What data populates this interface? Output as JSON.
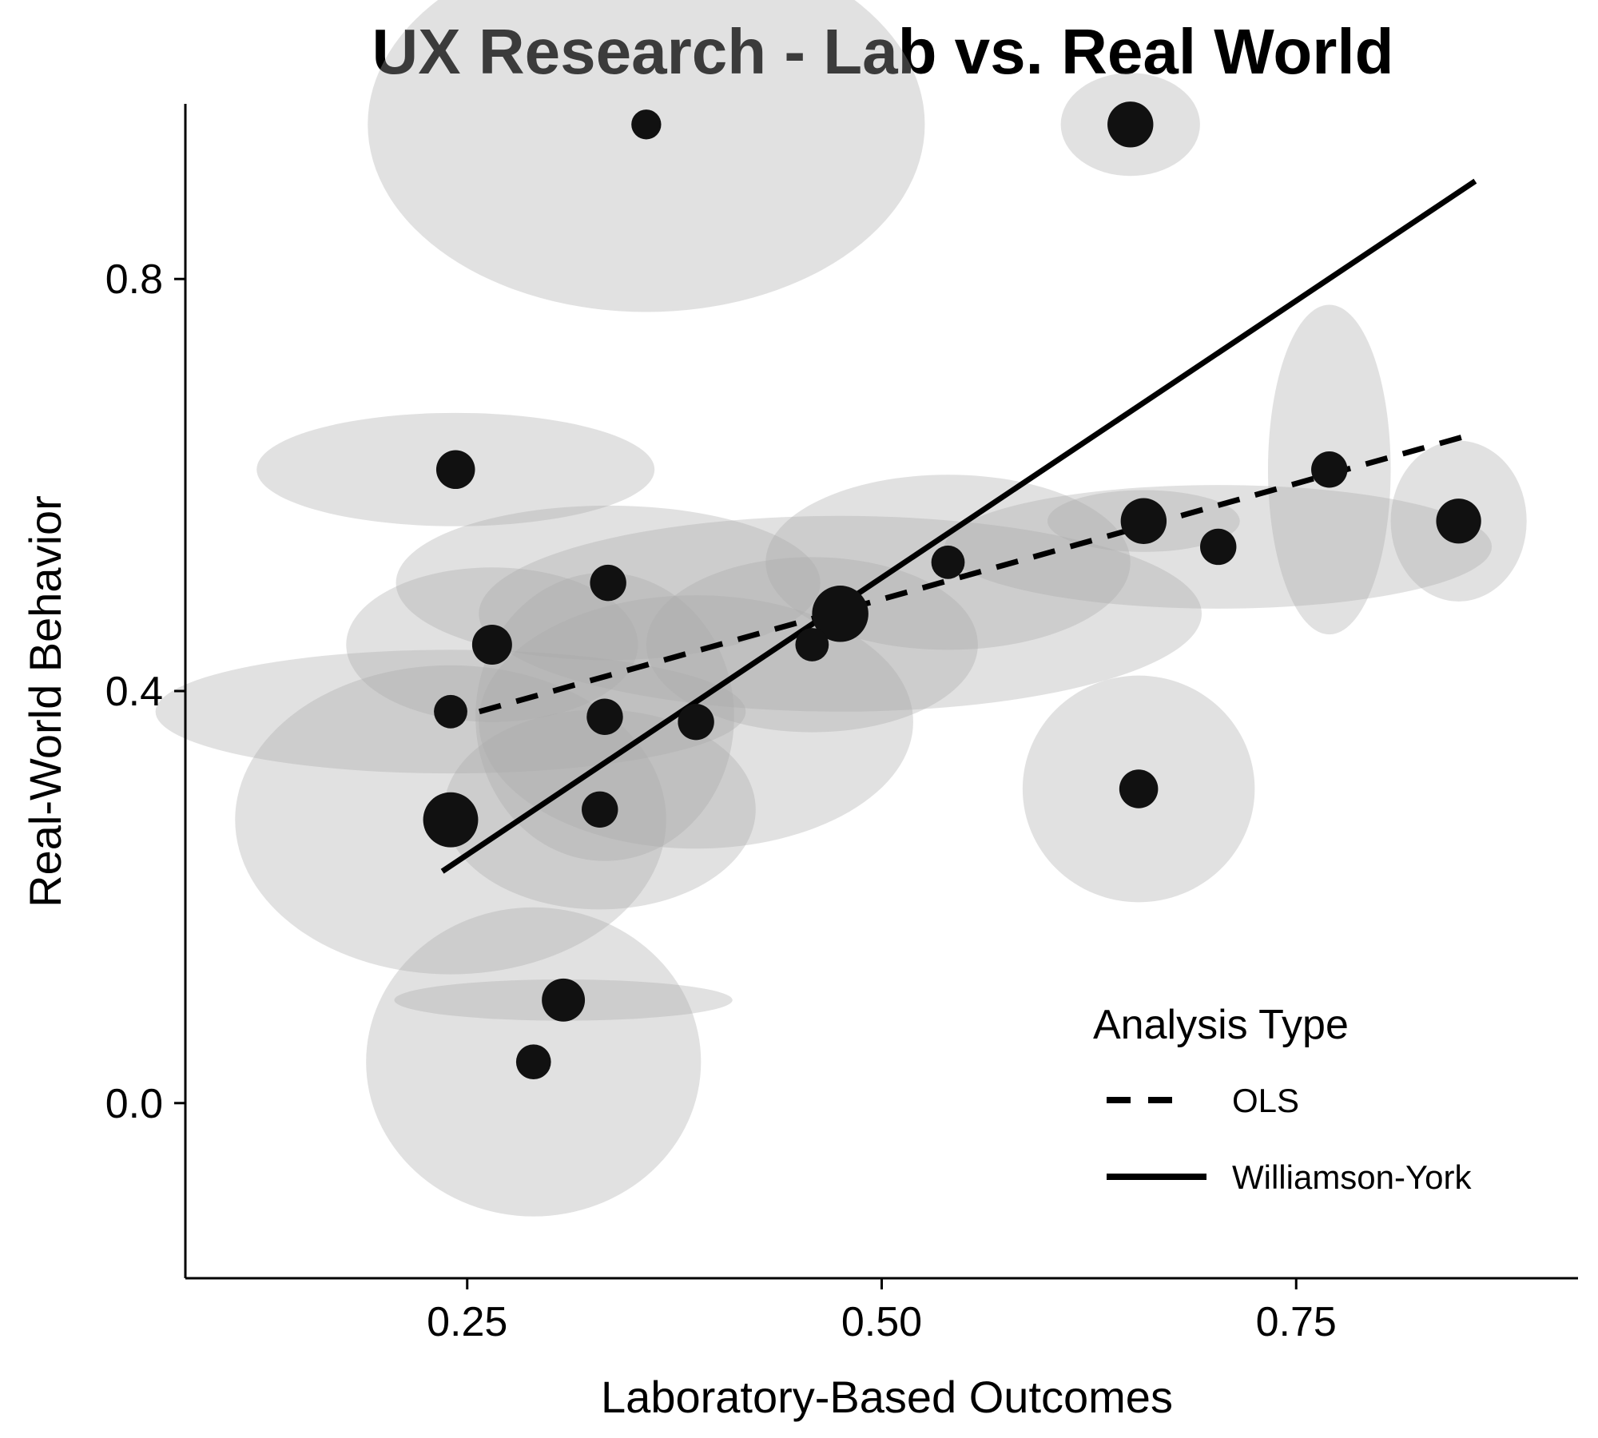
{
  "chart_data": {
    "type": "scatter",
    "title": "UX Research - Lab vs. Real World",
    "xlabel": "Laboratory-Based Outcomes",
    "ylabel": "Real-World Behavior",
    "xlim": [
      0.08,
      0.92
    ],
    "ylim": [
      -0.17,
      0.97
    ],
    "x_ticks": [
      {
        "value": 0.25,
        "label": "0.25"
      },
      {
        "value": 0.5,
        "label": "0.50"
      },
      {
        "value": 0.75,
        "label": "0.75"
      }
    ],
    "y_ticks": [
      {
        "value": 0.0,
        "label": "0.0"
      },
      {
        "value": 0.4,
        "label": "0.4"
      },
      {
        "value": 0.8,
        "label": "0.8"
      }
    ],
    "grid": false,
    "points": [
      {
        "x": 0.358,
        "y": 0.95,
        "sx": 0.168,
        "sy": 0.182,
        "w": 0.3
      },
      {
        "x": 0.65,
        "y": 0.95,
        "sx": 0.042,
        "sy": 0.05,
        "w": 1.6
      },
      {
        "x": 0.243,
        "y": 0.615,
        "sx": 0.12,
        "sy": 0.055,
        "w": 0.9
      },
      {
        "x": 0.77,
        "y": 0.615,
        "sx": 0.037,
        "sy": 0.16,
        "w": 0.7
      },
      {
        "x": 0.658,
        "y": 0.565,
        "sx": 0.058,
        "sy": 0.03,
        "w": 1.6
      },
      {
        "x": 0.848,
        "y": 0.565,
        "sx": 0.041,
        "sy": 0.078,
        "w": 1.5
      },
      {
        "x": 0.703,
        "y": 0.54,
        "sx": 0.165,
        "sy": 0.06,
        "w": 0.7
      },
      {
        "x": 0.54,
        "y": 0.525,
        "sx": 0.11,
        "sy": 0.085,
        "w": 0.5
      },
      {
        "x": 0.335,
        "y": 0.505,
        "sx": 0.128,
        "sy": 0.075,
        "w": 0.7
      },
      {
        "x": 0.475,
        "y": 0.475,
        "sx": 0.218,
        "sy": 0.095,
        "w": 3.0
      },
      {
        "x": 0.458,
        "y": 0.445,
        "sx": 0.1,
        "sy": 0.085,
        "w": 0.5
      },
      {
        "x": 0.265,
        "y": 0.445,
        "sx": 0.088,
        "sy": 0.075,
        "w": 1.0
      },
      {
        "x": 0.24,
        "y": 0.38,
        "sx": 0.178,
        "sy": 0.06,
        "w": 0.5
      },
      {
        "x": 0.333,
        "y": 0.375,
        "sx": 0.078,
        "sy": 0.14,
        "w": 0.7
      },
      {
        "x": 0.388,
        "y": 0.37,
        "sx": 0.131,
        "sy": 0.123,
        "w": 0.7
      },
      {
        "x": 0.33,
        "y": 0.285,
        "sx": 0.094,
        "sy": 0.097,
        "w": 0.7
      },
      {
        "x": 0.24,
        "y": 0.275,
        "sx": 0.13,
        "sy": 0.15,
        "w": 2.8
      },
      {
        "x": 0.655,
        "y": 0.305,
        "sx": 0.07,
        "sy": 0.11,
        "w": 0.9
      },
      {
        "x": 0.308,
        "y": 0.1,
        "sx": 0.102,
        "sy": 0.02,
        "w": 1.3
      },
      {
        "x": 0.29,
        "y": 0.04,
        "sx": 0.101,
        "sy": 0.15,
        "w": 0.6
      }
    ],
    "fits": [
      {
        "name": "OLS",
        "style": "dashed",
        "x": [
          0.235,
          0.858
        ],
        "y": [
          0.37,
          0.65
        ]
      },
      {
        "name": "Williamson-York",
        "style": "solid",
        "x": [
          0.235,
          0.858
        ],
        "y": [
          0.225,
          0.895
        ]
      }
    ],
    "legend": {
      "title": "Analysis Type",
      "position": "bottom-right",
      "entries": [
        {
          "label": "OLS",
          "style": "dashed"
        },
        {
          "label": "Williamson-York",
          "style": "solid"
        }
      ]
    },
    "colors": {
      "ellipse_fill": "#a8a8a8",
      "ellipse_opacity": 0.35,
      "point_fill": "#111111",
      "line": "#000000"
    }
  }
}
